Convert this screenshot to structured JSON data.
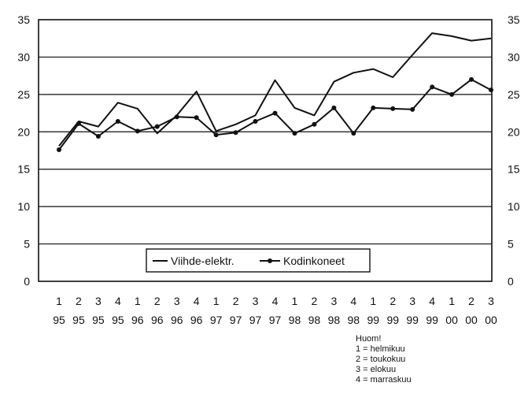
{
  "chart_data": {
    "type": "line",
    "x_labels_top": [
      "1",
      "2",
      "3",
      "4",
      "1",
      "2",
      "3",
      "4",
      "1",
      "2",
      "3",
      "4",
      "1",
      "2",
      "3",
      "4",
      "1",
      "2",
      "3",
      "4",
      "1",
      "2",
      "3"
    ],
    "x_labels_bottom": [
      "95",
      "95",
      "95",
      "95",
      "96",
      "96",
      "96",
      "96",
      "97",
      "97",
      "97",
      "97",
      "98",
      "98",
      "98",
      "98",
      "99",
      "99",
      "99",
      "99",
      "00",
      "00",
      "00"
    ],
    "ylim": [
      0,
      35
    ],
    "yticks": [
      0,
      5,
      10,
      15,
      20,
      25,
      30,
      35
    ],
    "grid": "horizontal",
    "legend_position": "lower-center",
    "series": [
      {
        "name": "Viihde-elektr.",
        "marker": "none",
        "values": [
          18.1,
          21.4,
          20.7,
          23.9,
          23.1,
          19.8,
          22.2,
          25.4,
          20.1,
          21.0,
          22.2,
          26.9,
          23.2,
          22.2,
          26.7,
          27.9,
          28.4,
          27.3,
          30.3,
          33.2,
          32.8,
          32.2,
          32.5
        ]
      },
      {
        "name": "Kodinkoneet",
        "marker": "dot",
        "values": [
          17.6,
          21.1,
          19.4,
          21.4,
          20.1,
          20.7,
          22.0,
          21.9,
          19.6,
          19.9,
          21.4,
          22.5,
          19.8,
          21.0,
          23.2,
          19.8,
          23.2,
          23.1,
          23.0,
          26.0,
          25.0,
          27.0,
          25.6
        ]
      }
    ]
  },
  "note": {
    "title": "Huom!",
    "lines": [
      "1 = helmikuu",
      "2 = toukokuu",
      "3 = elokuu",
      "4 = marraskuu"
    ]
  }
}
